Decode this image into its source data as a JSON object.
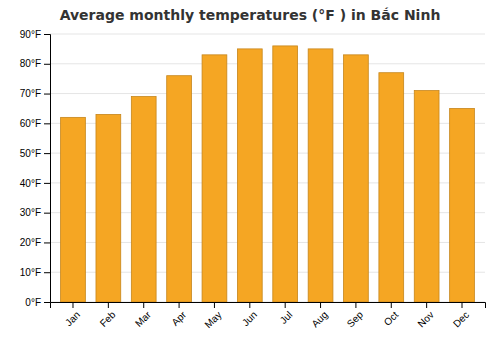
{
  "chart_data": {
    "type": "bar",
    "title": "Average monthly temperatures (°F ) in Bắc Ninh",
    "categories": [
      "Jan",
      "Feb",
      "Mar",
      "Apr",
      "May",
      "Jun",
      "Jul",
      "Aug",
      "Sep",
      "Oct",
      "Nov",
      "Dec"
    ],
    "values": [
      62,
      63,
      69,
      76,
      83,
      85,
      86,
      85,
      83,
      77,
      71,
      65
    ],
    "color": "#F5A623",
    "ylim": [
      0,
      90
    ],
    "yticks": [
      {
        "value": 0,
        "label": "0°F"
      },
      {
        "value": 10,
        "label": "10°F"
      },
      {
        "value": 20,
        "label": "20°F"
      },
      {
        "value": 30,
        "label": "30°F"
      },
      {
        "value": 40,
        "label": "40°F"
      },
      {
        "value": 50,
        "label": "50°F"
      },
      {
        "value": 60,
        "label": "60°F"
      },
      {
        "value": 70,
        "label": "70°F"
      },
      {
        "value": 80,
        "label": "80°F"
      },
      {
        "value": 90,
        "label": "90°F"
      }
    ],
    "grid": true
  }
}
